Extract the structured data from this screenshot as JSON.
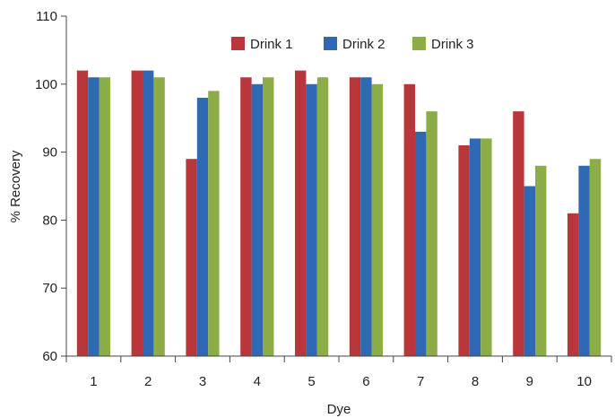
{
  "chart_data": {
    "type": "bar",
    "categories": [
      "1",
      "2",
      "3",
      "4",
      "5",
      "6",
      "7",
      "8",
      "9",
      "10"
    ],
    "series": [
      {
        "name": "Drink 1",
        "color": "#b8373b",
        "values": [
          102,
          102,
          89,
          101,
          102,
          101,
          100,
          91,
          96,
          81
        ]
      },
      {
        "name": "Drink 2",
        "color": "#2f68b3",
        "values": [
          101,
          102,
          98,
          100,
          100,
          101,
          93,
          92,
          85,
          88
        ]
      },
      {
        "name": "Drink 3",
        "color": "#8bac46",
        "values": [
          101,
          101,
          99,
          101,
          101,
          100,
          96,
          92,
          88,
          89
        ]
      }
    ],
    "xlabel": "Dye",
    "ylabel": "% Recovery",
    "ylim": [
      60,
      110
    ],
    "yticks": [
      60,
      70,
      80,
      90,
      100,
      110
    ],
    "grid": false,
    "legend_position": "top-right"
  }
}
